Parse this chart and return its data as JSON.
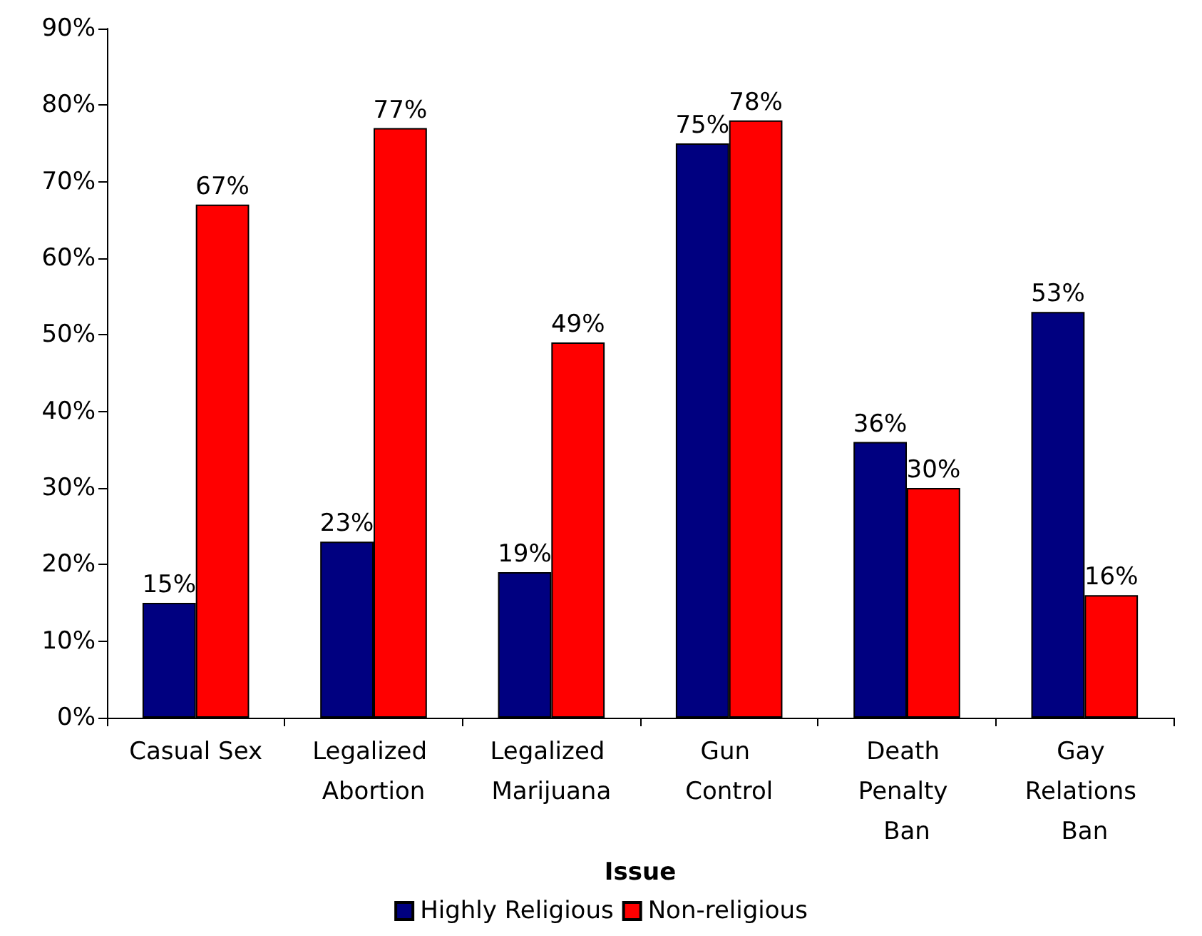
{
  "chart_data": {
    "type": "bar",
    "xlabel": "Issue",
    "categories": [
      "Casual Sex",
      "Legalized Abortion",
      "Legalized Marijuana",
      "Gun Control",
      "Death Penalty Ban",
      "Gay Relations Ban"
    ],
    "series": [
      {
        "name": "Highly Religious",
        "color": "#000080",
        "values": [
          15,
          23,
          19,
          75,
          36,
          53
        ],
        "value_labels": [
          "15%",
          "23%",
          "19%",
          "75%",
          "36%",
          "53%"
        ]
      },
      {
        "name": "Non-religious",
        "color": "#ff0000",
        "values": [
          67,
          77,
          49,
          78,
          30,
          16
        ],
        "value_labels": [
          "67%",
          "77%",
          "49%",
          "78%",
          "30%",
          "16%"
        ]
      }
    ],
    "ylim": [
      0,
      90
    ],
    "yticks": [
      {
        "value": 0,
        "label": "0%"
      },
      {
        "value": 10,
        "label": "10%"
      },
      {
        "value": 20,
        "label": "20%"
      },
      {
        "value": 30,
        "label": "30%"
      },
      {
        "value": 40,
        "label": "40%"
      },
      {
        "value": 50,
        "label": "50%"
      },
      {
        "value": 60,
        "label": "60%"
      },
      {
        "value": 70,
        "label": "70%"
      },
      {
        "value": 80,
        "label": "80%"
      },
      {
        "value": 90,
        "label": "90%"
      }
    ],
    "grid": false,
    "legend": "bottom"
  }
}
